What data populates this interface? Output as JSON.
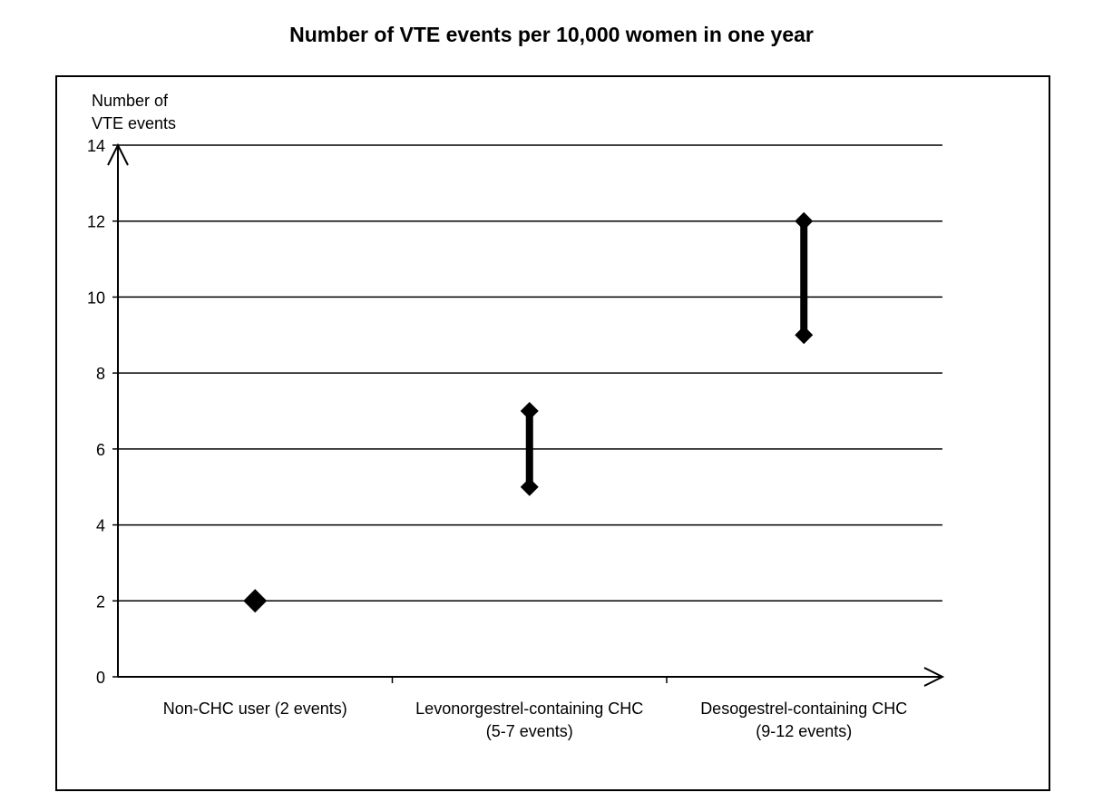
{
  "chart_data": {
    "type": "scatter",
    "title": "Number of VTE events per 10,000 women in one year",
    "ylabel_line1": "Number of",
    "ylabel_line2": "VTE events",
    "xlabel": "",
    "ylim": [
      0,
      14
    ],
    "yticks": [
      "0",
      "2",
      "4",
      "6",
      "8",
      "10",
      "12",
      "14"
    ],
    "grid": true,
    "legend": "none",
    "categories": [
      {
        "line1": "Non-CHC user (2 events)",
        "line2": "",
        "low": 2,
        "high": 2
      },
      {
        "line1": "Levonorgestrel-containing CHC",
        "line2": "(5-7 events)",
        "low": 5,
        "high": 7
      },
      {
        "line1": "Desogestrel-containing CHC",
        "line2": "(9-12 events)",
        "low": 9,
        "high": 12
      }
    ],
    "marker_color": "#000000"
  }
}
